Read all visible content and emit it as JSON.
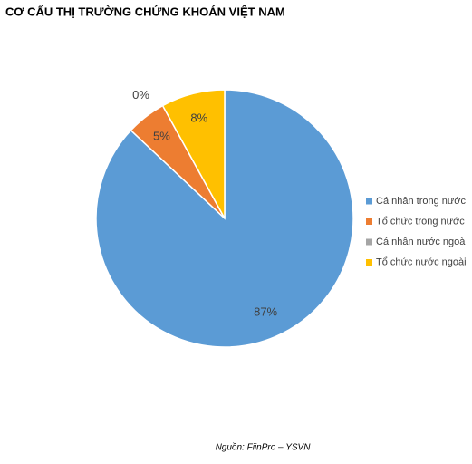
{
  "chart_data": {
    "type": "pie",
    "title": "CƠ CẤU THỊ TRƯỜNG CHỨNG KHOÁN VIỆT NAM",
    "categories": [
      "Cá nhân trong nước",
      "Tổ chức trong nước",
      "Cá nhân nước ngoà",
      "Tổ chức nước ngoài"
    ],
    "values": [
      87,
      5,
      0,
      8
    ],
    "value_labels": [
      "87%",
      "5%",
      "0%",
      "8%"
    ],
    "colors": [
      "#5b9bd5",
      "#ed7d31",
      "#a5a5a5",
      "#ffc000"
    ],
    "legend": "right",
    "source": "Nguồn: FiinPro – YSVN"
  }
}
